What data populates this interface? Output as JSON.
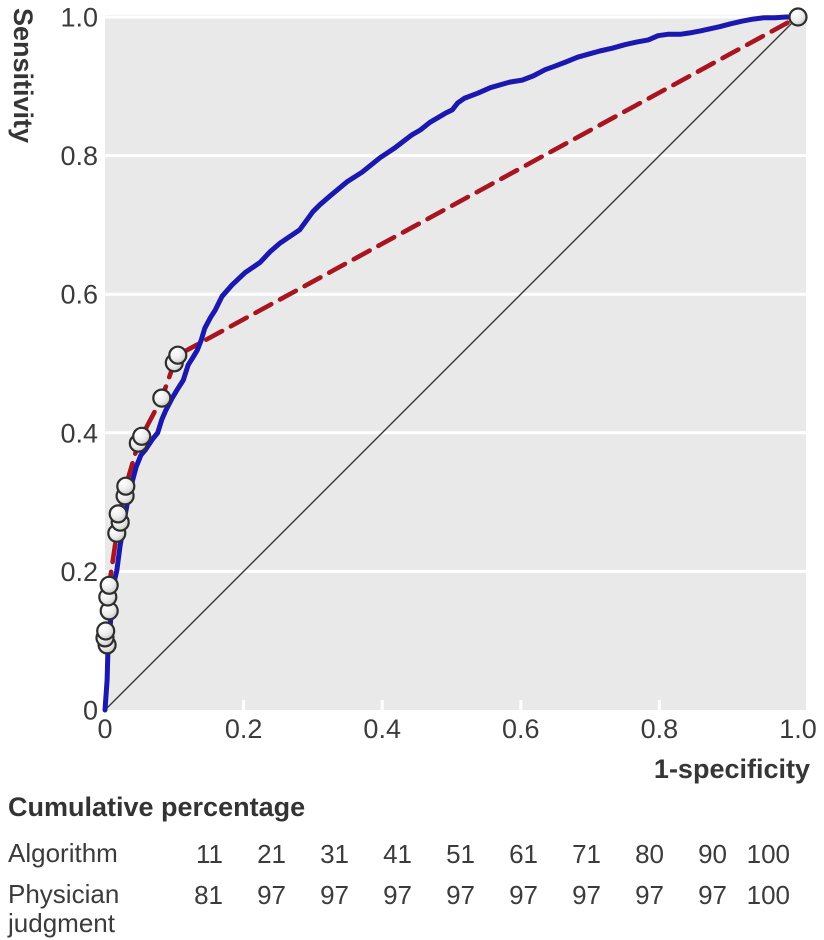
{
  "chart_data": {
    "type": "line",
    "title": "",
    "xlabel": "1-specificity",
    "ylabel": "Sensitivity",
    "xlim": [
      0,
      1
    ],
    "ylim": [
      0,
      1
    ],
    "grid": "horizontal-only",
    "xtick_labels": [
      "0",
      "0.2",
      "0.4",
      "0.6",
      "0.8",
      "1.0"
    ],
    "ytick_labels": [
      "0",
      "0.2",
      "0.4",
      "0.6",
      "0.8",
      "1.0"
    ],
    "series": [
      {
        "name": "algorithm-roc",
        "style": "solid",
        "points": [
          [
            0,
            0
          ],
          [
            0.003,
            0.043
          ],
          [
            0.004,
            0.079
          ],
          [
            0.007,
            0.115
          ],
          [
            0.009,
            0.141
          ],
          [
            0.01,
            0.163
          ],
          [
            0.012,
            0.18
          ],
          [
            0.017,
            0.201
          ],
          [
            0.022,
            0.238
          ],
          [
            0.026,
            0.26
          ],
          [
            0.029,
            0.281
          ],
          [
            0.033,
            0.303
          ],
          [
            0.04,
            0.332
          ],
          [
            0.045,
            0.351
          ],
          [
            0.052,
            0.368
          ],
          [
            0.058,
            0.375
          ],
          [
            0.068,
            0.39
          ],
          [
            0.076,
            0.4
          ],
          [
            0.082,
            0.419
          ],
          [
            0.088,
            0.433
          ],
          [
            0.097,
            0.45
          ],
          [
            0.104,
            0.462
          ],
          [
            0.113,
            0.476
          ],
          [
            0.12,
            0.498
          ],
          [
            0.127,
            0.509
          ],
          [
            0.133,
            0.519
          ],
          [
            0.139,
            0.534
          ],
          [
            0.144,
            0.551
          ],
          [
            0.152,
            0.566
          ],
          [
            0.159,
            0.577
          ],
          [
            0.169,
            0.597
          ],
          [
            0.183,
            0.613
          ],
          [
            0.202,
            0.631
          ],
          [
            0.224,
            0.646
          ],
          [
            0.238,
            0.661
          ],
          [
            0.253,
            0.674
          ],
          [
            0.281,
            0.693
          ],
          [
            0.3,
            0.719
          ],
          [
            0.31,
            0.729
          ],
          [
            0.325,
            0.742
          ],
          [
            0.349,
            0.762
          ],
          [
            0.371,
            0.776
          ],
          [
            0.397,
            0.797
          ],
          [
            0.418,
            0.811
          ],
          [
            0.443,
            0.83
          ],
          [
            0.455,
            0.837
          ],
          [
            0.469,
            0.848
          ],
          [
            0.491,
            0.861
          ],
          [
            0.501,
            0.866
          ],
          [
            0.509,
            0.876
          ],
          [
            0.519,
            0.883
          ],
          [
            0.538,
            0.89
          ],
          [
            0.556,
            0.898
          ],
          [
            0.584,
            0.906
          ],
          [
            0.602,
            0.909
          ],
          [
            0.618,
            0.915
          ],
          [
            0.635,
            0.924
          ],
          [
            0.649,
            0.929
          ],
          [
            0.665,
            0.935
          ],
          [
            0.682,
            0.942
          ],
          [
            0.7,
            0.947
          ],
          [
            0.714,
            0.951
          ],
          [
            0.732,
            0.955
          ],
          [
            0.75,
            0.96
          ],
          [
            0.768,
            0.964
          ],
          [
            0.784,
            0.967
          ],
          [
            0.798,
            0.973
          ],
          [
            0.812,
            0.975
          ],
          [
            0.83,
            0.975
          ],
          [
            0.844,
            0.977
          ],
          [
            0.859,
            0.98
          ],
          [
            0.873,
            0.983
          ],
          [
            0.887,
            0.986
          ],
          [
            0.902,
            0.99
          ],
          [
            0.919,
            0.994
          ],
          [
            0.935,
            0.997
          ],
          [
            0.952,
            0.999
          ],
          [
            0.967,
            0.999
          ],
          [
            0.983,
            1.0
          ],
          [
            1.0,
            1.0
          ]
        ]
      },
      {
        "name": "physician-judgment-roc",
        "style": "dashed",
        "points": [
          [
            0.003,
            0.094
          ],
          [
            0.0,
            0.104
          ],
          [
            0.001,
            0.114
          ],
          [
            0.006,
            0.143
          ],
          [
            0.004,
            0.163
          ],
          [
            0.006,
            0.18
          ],
          [
            0.017,
            0.255
          ],
          [
            0.022,
            0.271
          ],
          [
            0.019,
            0.283
          ],
          [
            0.029,
            0.309
          ],
          [
            0.03,
            0.323
          ],
          [
            0.048,
            0.385
          ],
          [
            0.053,
            0.395
          ],
          [
            0.082,
            0.45
          ],
          [
            0.1,
            0.501
          ],
          [
            0.105,
            0.512
          ],
          [
            1.0,
            1.0
          ]
        ]
      },
      {
        "name": "reference-diagonal",
        "style": "thin-solid",
        "points": [
          [
            0,
            0
          ],
          [
            1,
            1
          ]
        ]
      }
    ],
    "markers": {
      "name": "physician-operating-points",
      "shape": "circle",
      "points": [
        [
          0.003,
          0.094
        ],
        [
          0.0,
          0.104
        ],
        [
          0.001,
          0.114
        ],
        [
          0.006,
          0.143
        ],
        [
          0.004,
          0.163
        ],
        [
          0.006,
          0.18
        ],
        [
          0.017,
          0.255
        ],
        [
          0.022,
          0.271
        ],
        [
          0.019,
          0.283
        ],
        [
          0.029,
          0.309
        ],
        [
          0.03,
          0.323
        ],
        [
          0.048,
          0.385
        ],
        [
          0.053,
          0.395
        ],
        [
          0.082,
          0.45
        ],
        [
          0.1,
          0.501
        ],
        [
          0.105,
          0.512
        ],
        [
          1.0,
          1.0
        ]
      ]
    }
  },
  "colors": {
    "algorithm_line": "#1b18b0",
    "physician_line": "#a81420",
    "diagonal_line": "#3a3a3a",
    "panel_bg": "#e9e9e9",
    "gridline": "#ffffff",
    "marker_fill_light": "#ffffff",
    "marker_fill_dark": "#c3c3c3",
    "marker_stroke": "#2e2e2e",
    "text": "#3b3b3b"
  },
  "table": {
    "heading": "Cumulative percentage",
    "rows": [
      {
        "label": "Algorithm",
        "values": [
          "11",
          "21",
          "31",
          "41",
          "51",
          "61",
          "71",
          "80",
          "90",
          "100"
        ]
      },
      {
        "label": "Physician judgment",
        "values": [
          "81",
          "97",
          "97",
          "97",
          "97",
          "97",
          "97",
          "97",
          "97",
          "100"
        ]
      }
    ]
  }
}
